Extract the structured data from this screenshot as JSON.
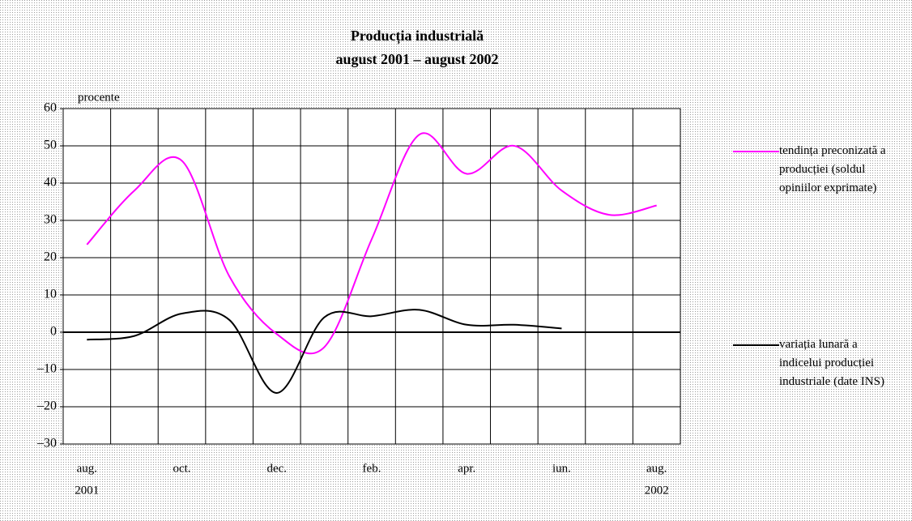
{
  "chart_data": {
    "type": "line",
    "title": "Producția industrială",
    "subtitle": "august 2001 – august 2002",
    "y_label": "procente",
    "categories": [
      "aug.",
      null,
      "oct.",
      null,
      "dec.",
      null,
      "feb.",
      null,
      "apr.",
      null,
      "iun.",
      null,
      "aug."
    ],
    "category_years": [
      "2001",
      null,
      null,
      null,
      null,
      null,
      null,
      null,
      null,
      null,
      null,
      null,
      "2002"
    ],
    "series": [
      {
        "name": "tendința preconizată a producției (soldul opiniilor exprimate)",
        "color": "#ff00ff",
        "values": [
          23.5,
          38,
          46,
          15,
          -0.5,
          -4,
          25,
          53,
          42.5,
          50,
          38,
          31.5,
          34
        ]
      },
      {
        "name": "variația lunară a indicelui producției industriale (date INS)",
        "color": "#000000",
        "values": [
          -2,
          -1,
          5,
          3.3,
          -16.3,
          4,
          4.3,
          6,
          2,
          2,
          1,
          null,
          null
        ]
      }
    ],
    "ylim": [
      -30,
      60
    ],
    "yticks": [
      {
        "value": -30,
        "label": "–30"
      },
      {
        "value": -20,
        "label": "–20"
      },
      {
        "value": -10,
        "label": "–10"
      },
      0,
      10,
      20,
      30,
      40,
      50,
      60
    ],
    "grid": true
  }
}
